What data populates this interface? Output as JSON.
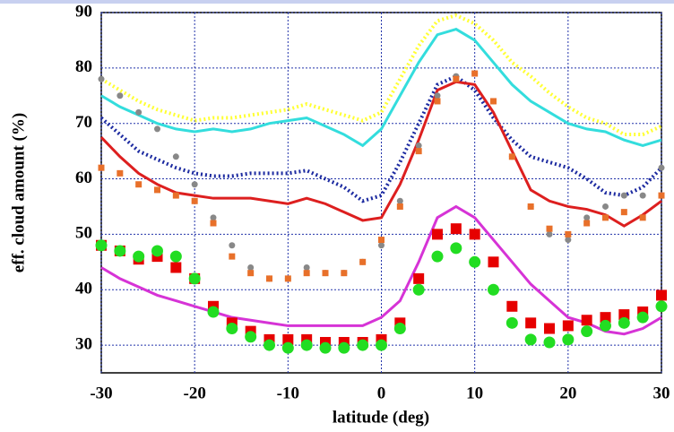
{
  "chart_data": {
    "type": "line",
    "x_label": "latitude (deg)",
    "y_label": "eff. cloud amount (%)",
    "x": [
      -30,
      -28,
      -26,
      -24,
      -22,
      -20,
      -18,
      -16,
      -14,
      -12,
      -10,
      -8,
      -6,
      -4,
      -2,
      0,
      2,
      4,
      6,
      8,
      10,
      12,
      14,
      16,
      18,
      20,
      22,
      24,
      26,
      28,
      30
    ],
    "xlim": [
      -30,
      30
    ],
    "ylim": [
      25,
      90
    ],
    "xticks": [
      -30,
      -20,
      -10,
      0,
      10,
      20,
      30
    ],
    "yticks": [
      30,
      40,
      50,
      60,
      70,
      80,
      90
    ],
    "grid": true,
    "series": [
      {
        "color": "#ffff33",
        "marker": "dotted",
        "values": [
          78,
          76,
          74,
          72.5,
          71.5,
          70.5,
          71,
          71,
          71.5,
          72,
          72.5,
          73.5,
          72.5,
          71.5,
          70.5,
          72,
          78,
          84,
          88.5,
          89.5,
          88,
          85,
          81,
          78.5,
          75.5,
          73,
          71,
          70,
          68,
          68,
          69.5
        ]
      },
      {
        "color": "#33dddd",
        "marker": "line",
        "values": [
          75,
          73,
          71.5,
          70,
          69,
          68.5,
          69,
          68.5,
          69,
          70,
          70.5,
          71,
          69.5,
          68,
          66,
          69,
          75,
          81,
          86,
          87,
          85,
          81,
          77,
          74,
          72,
          70,
          69,
          68.5,
          67,
          66,
          67
        ]
      },
      {
        "color": "#1c2aa0",
        "marker": "dotted",
        "values": [
          71,
          68,
          65,
          63.5,
          62,
          61,
          60.5,
          60.5,
          61,
          61,
          61,
          61.5,
          60,
          58.5,
          56,
          57,
          63,
          70,
          77,
          78.5,
          76,
          71,
          67,
          64,
          63,
          62,
          60,
          57.5,
          57,
          58.5,
          62
        ]
      },
      {
        "color": "#dd1f1f",
        "marker": "line",
        "values": [
          67.5,
          64,
          61,
          59,
          57.5,
          57,
          56.5,
          56.5,
          56.5,
          56,
          55.5,
          56.5,
          55.5,
          54,
          52.5,
          53,
          59,
          67,
          76,
          77.5,
          77,
          72,
          65,
          58,
          56,
          55,
          54.5,
          53.5,
          51.5,
          53.5,
          56
        ]
      },
      {
        "color": "#888888",
        "marker": "circle-small",
        "values": [
          78,
          75,
          72,
          69,
          64,
          59,
          53,
          48,
          44,
          42,
          42,
          44,
          43,
          43,
          45,
          48,
          56,
          66,
          75,
          78.5,
          79,
          74,
          64,
          55,
          50,
          49,
          53,
          55,
          57,
          57,
          62
        ]
      },
      {
        "color": "#e8702a",
        "marker": "square-small",
        "values": [
          62,
          61,
          59,
          58,
          57,
          56,
          52,
          46,
          43,
          42,
          42,
          43,
          43,
          43,
          45,
          49,
          55,
          65,
          74,
          78,
          79,
          74,
          64,
          55,
          51,
          50,
          52,
          53,
          54,
          53,
          57
        ]
      },
      {
        "color": "#d633d6",
        "marker": "line",
        "values": [
          44,
          42,
          40.5,
          39,
          38,
          37,
          36,
          35,
          34.5,
          34,
          33.5,
          33.5,
          33.5,
          33.5,
          33.5,
          35,
          38,
          45,
          53,
          55,
          53,
          49,
          45,
          41,
          38,
          35,
          34,
          32.5,
          32,
          33,
          35
        ]
      },
      {
        "color": "#e60000",
        "marker": "square",
        "values": [
          48,
          47,
          45.5,
          46,
          44,
          42,
          37,
          34,
          32.5,
          31,
          31,
          31,
          30.5,
          30.5,
          30.5,
          31,
          34,
          42,
          50,
          51,
          50,
          45,
          37,
          34,
          33,
          33.5,
          34.5,
          35,
          35.5,
          36,
          39
        ]
      },
      {
        "color": "#22dd22",
        "marker": "circle",
        "values": [
          48,
          47,
          46,
          47,
          46,
          42,
          36,
          33,
          31.5,
          30,
          29.5,
          30,
          29.5,
          29.5,
          30,
          30,
          33,
          40,
          46,
          47.5,
          45,
          40,
          34,
          31,
          30.5,
          31,
          32.5,
          33.5,
          34,
          35,
          37
        ]
      }
    ]
  }
}
